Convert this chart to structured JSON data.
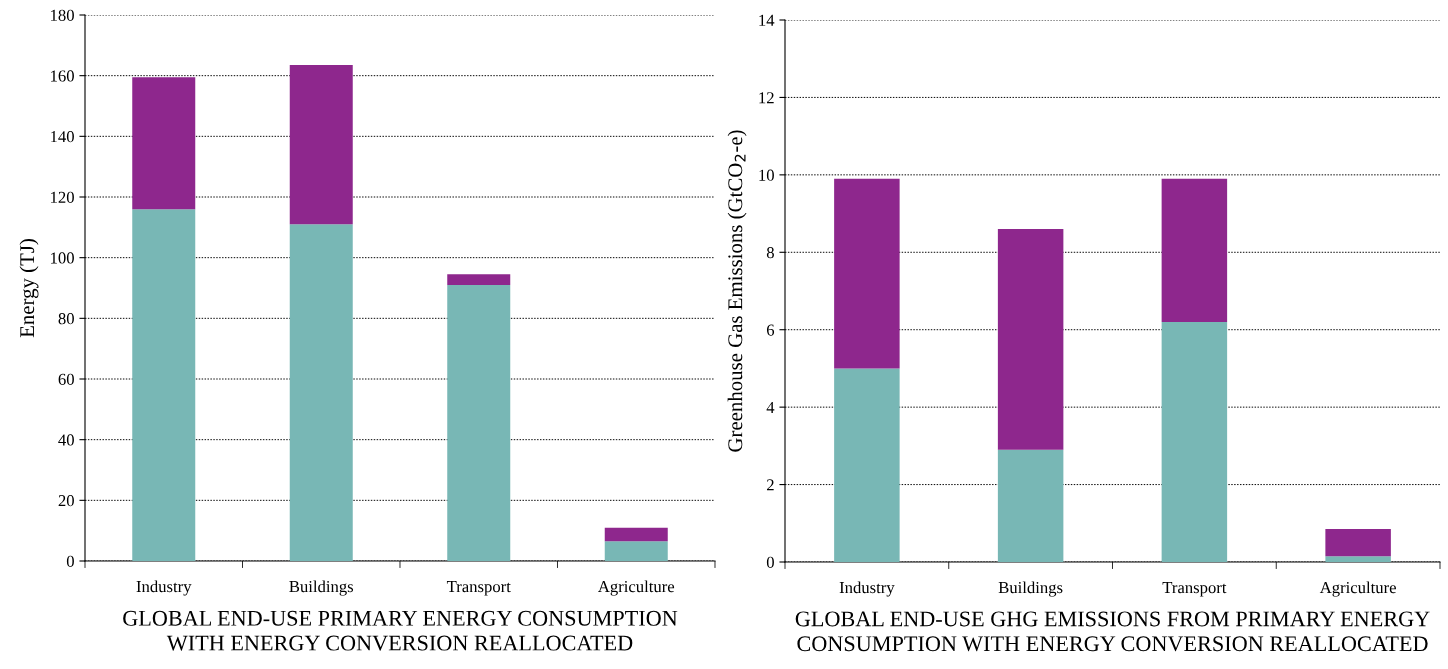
{
  "chart_data": [
    {
      "type": "bar",
      "stacked": true,
      "title": "GLOBAL END-USE PRIMARY ENERGY CONSUMPTION\nWITH ENERGY CONVERSION REALLOCATED",
      "ylabel": "Energy (TJ)",
      "categories": [
        "Industry",
        "Buildings",
        "Transport",
        "Agriculture"
      ],
      "series": [
        {
          "color": "#78b7b5",
          "values": [
            116,
            111,
            91,
            6.5
          ]
        },
        {
          "color": "#8e278d",
          "values": [
            43.5,
            52.5,
            3.5,
            4.5
          ]
        }
      ],
      "ylim": [
        0,
        180
      ],
      "yticks": [
        0,
        20,
        40,
        60,
        80,
        100,
        120,
        140,
        160,
        180
      ],
      "grid": "y"
    },
    {
      "type": "bar",
      "stacked": true,
      "title": "GLOBAL END-USE GHG EMISSIONS FROM PRIMARY ENERGY\nCONSUMPTION WITH ENERGY CONVERSION REALLOCATED",
      "ylabel": "Greenhouse Gas Emissions (GtCO$_{2}$-e)",
      "categories": [
        "Industry",
        "Buildings",
        "Transport",
        "Agriculture"
      ],
      "series": [
        {
          "color": "#78b7b5",
          "values": [
            5.0,
            2.9,
            6.2,
            0.15
          ]
        },
        {
          "color": "#8e278d",
          "values": [
            4.9,
            5.7,
            3.7,
            0.7
          ]
        }
      ],
      "ylim": [
        0,
        14
      ],
      "yticks": [
        0,
        2,
        4,
        6,
        8,
        10,
        12,
        14
      ],
      "grid": "y"
    }
  ]
}
